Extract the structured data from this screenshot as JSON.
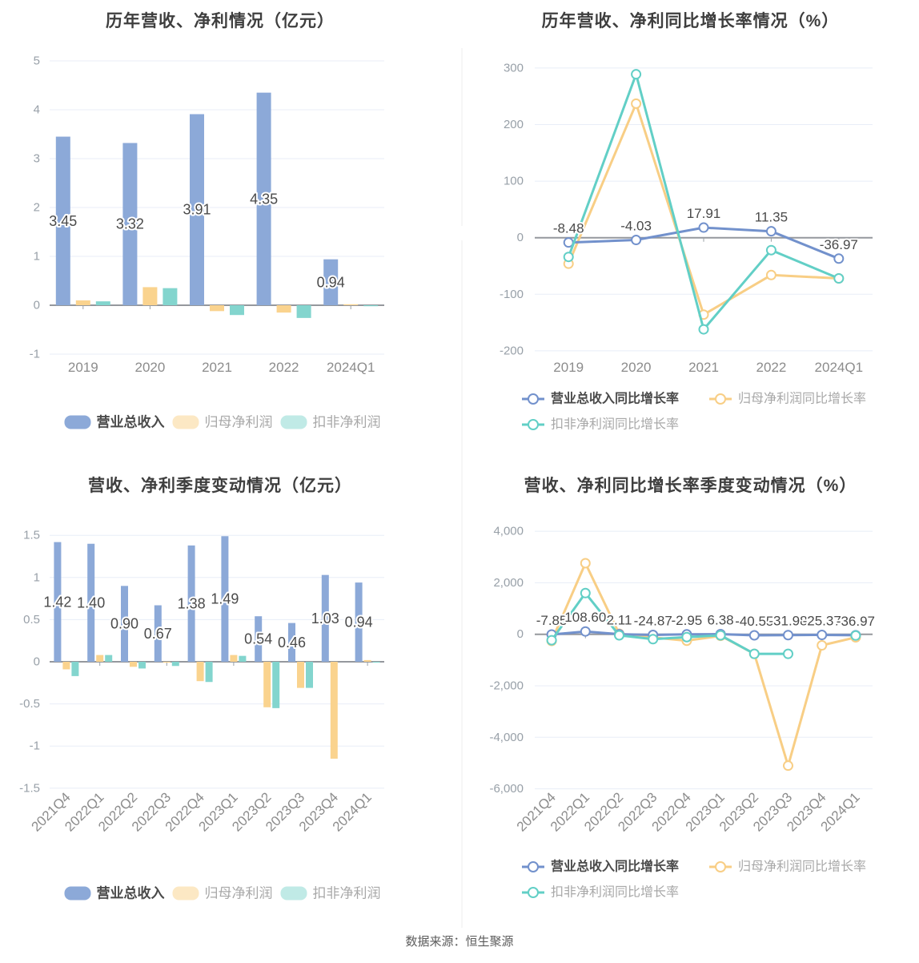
{
  "page": {
    "footer": "数据来源：恒生聚源"
  },
  "colors": {
    "revenue_bar": "#8CA9D8",
    "net_profit_bar": "#FAD38E",
    "non_gaap_bar": "#83D5CE",
    "revenue_line": "#7291CC",
    "net_profit_line": "#F8CE85",
    "non_gaap_line": "#62CFC6",
    "grid": "#E8EDF7",
    "axis": "#95989D"
  },
  "chart_data": [
    {
      "type": "bar",
      "title": "历年营收、净利情况（亿元）",
      "categories": [
        "2019",
        "2020",
        "2021",
        "2022",
        "2024Q1"
      ],
      "y_tick_labels": [
        "5",
        "4",
        "3",
        "2",
        "1",
        "0",
        "-1"
      ],
      "ylim": [
        -1,
        5
      ],
      "grid": true,
      "legend_position": "bottom",
      "series": [
        {
          "name": "营业总收入",
          "color": "#8CA9D8",
          "legend_color": "#8CA9D8",
          "values": [
            3.45,
            3.32,
            3.91,
            4.35,
            0.94
          ],
          "value_labels": [
            "3.45",
            "3.32",
            "3.91",
            "4.35",
            "0.94"
          ]
        },
        {
          "name": "归母净利润",
          "color": "#FAD38E",
          "legend_color": "#FCE8C4",
          "values": [
            0.1,
            0.37,
            -0.12,
            -0.15,
            0.02
          ]
        },
        {
          "name": "扣非净利润",
          "color": "#83D5CE",
          "legend_color": "#C0EAE6",
          "values": [
            0.08,
            0.35,
            -0.2,
            -0.26,
            -0.02
          ]
        }
      ]
    },
    {
      "type": "line",
      "title": "历年营收、净利同比增长率情况（%）",
      "categories": [
        "2019",
        "2020",
        "2021",
        "2022",
        "2024Q1"
      ],
      "y_tick_labels": [
        "300",
        "200",
        "100",
        "0",
        "-100",
        "-200"
      ],
      "ylim": [
        -200,
        300
      ],
      "grid": true,
      "legend_position": "bottom",
      "series": [
        {
          "name": "营业总收入同比增长率",
          "color": "#7291CC",
          "legend_color": "#7291CC",
          "values": [
            -8.48,
            -4.03,
            17.91,
            11.35,
            -36.97
          ],
          "value_labels": [
            "-8.48",
            "-4.03",
            "17.91",
            "11.35",
            "-36.97"
          ]
        },
        {
          "name": "归母净利润同比增长率",
          "color": "#F8CE85",
          "legend_color": "#F8CE85",
          "values": [
            -46,
            237,
            -136,
            -66,
            -72
          ]
        },
        {
          "name": "扣非净利润同比增长率",
          "color": "#62CFC6",
          "legend_color": "#62CFC6",
          "values": [
            -34,
            289,
            -162,
            -22,
            -72
          ]
        }
      ]
    },
    {
      "type": "bar",
      "title": "营收、净利季度变动情况（亿元）",
      "categories": [
        "2021Q4",
        "2022Q1",
        "2022Q2",
        "2022Q3",
        "2022Q4",
        "2023Q1",
        "2023Q2",
        "2023Q3",
        "2023Q4",
        "2024Q1"
      ],
      "y_tick_labels": [
        "1.5",
        "1",
        "0.5",
        "0",
        "-0.5",
        "-1",
        "-1.5"
      ],
      "ylim": [
        -1.5,
        1.5
      ],
      "grid": true,
      "legend_position": "bottom",
      "series": [
        {
          "name": "营业总收入",
          "color": "#8CA9D8",
          "legend_color": "#8CA9D8",
          "values": [
            1.42,
            1.4,
            0.9,
            0.67,
            1.38,
            1.49,
            0.54,
            0.46,
            1.03,
            0.94
          ],
          "value_labels": [
            "1.42",
            "1.40",
            "0.90",
            "0.67",
            "1.38",
            "1.49",
            "0.54",
            "0.46",
            "1.03",
            "0.94"
          ]
        },
        {
          "name": "归母净利润",
          "color": "#FAD38E",
          "legend_color": "#FCE8C4",
          "values": [
            -0.09,
            0.08,
            -0.06,
            -0.01,
            -0.23,
            0.08,
            -0.54,
            -0.31,
            -1.15,
            0.02
          ]
        },
        {
          "name": "扣非净利润",
          "color": "#83D5CE",
          "legend_color": "#C0EAE6",
          "values": [
            -0.17,
            0.08,
            -0.08,
            -0.05,
            -0.24,
            0.07,
            -0.55,
            -0.31,
            null,
            -0.01
          ]
        }
      ]
    },
    {
      "type": "line",
      "title": "营收、净利同比增长率季度变动情况（%）",
      "categories": [
        "2021Q4",
        "2022Q1",
        "2022Q2",
        "2022Q3",
        "2022Q4",
        "2023Q1",
        "2023Q2",
        "2023Q3",
        "2023Q4",
        "2024Q1"
      ],
      "y_tick_labels": [
        "4,000",
        "2,000",
        "0",
        "-2,000",
        "-4,000",
        "-6,000"
      ],
      "ylim": [
        -6000,
        4000
      ],
      "grid": true,
      "legend_position": "bottom",
      "series": [
        {
          "name": "营业总收入同比增长率",
          "color": "#7291CC",
          "legend_color": "#7291CC",
          "values": [
            -7.85,
            108.6,
            2.11,
            -24.87,
            -2.95,
            6.38,
            -40.55,
            -31.98,
            -25.37,
            -36.97
          ],
          "value_labels": [
            "-7.85",
            "108.60",
            "2.11",
            "-24.87",
            "-2.95",
            "6.38",
            "-40.55",
            "-31.98",
            "-25.37",
            "-36.97"
          ]
        },
        {
          "name": "归母净利润同比增长率",
          "color": "#F8CE85",
          "legend_color": "#F8CE85",
          "values": [
            -260,
            2760,
            20,
            -120,
            -250,
            -60,
            -760,
            -5100,
            -430,
            -120
          ]
        },
        {
          "name": "扣非净利润同比增长率",
          "color": "#62CFC6",
          "legend_color": "#62CFC6",
          "values": [
            -230,
            1600,
            -40,
            -190,
            -110,
            -40,
            -760,
            -760,
            null,
            -50
          ]
        }
      ]
    }
  ]
}
